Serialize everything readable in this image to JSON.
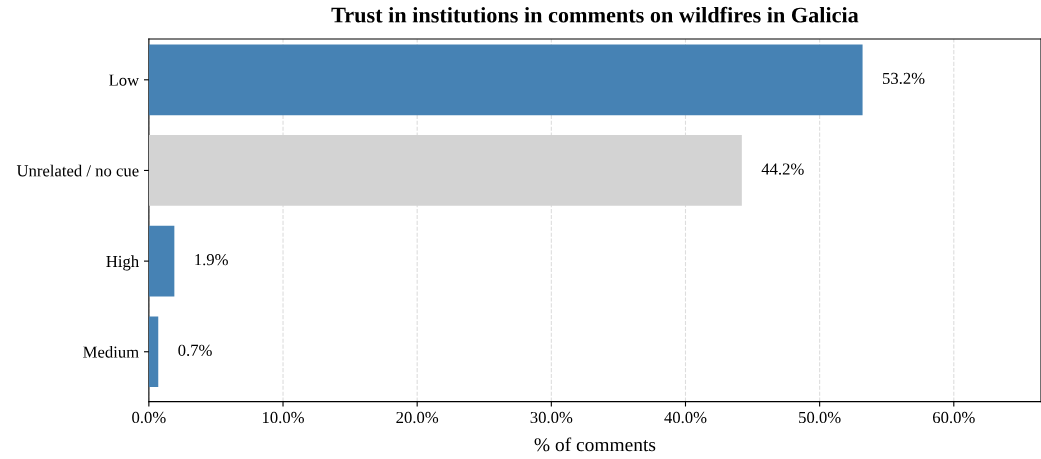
{
  "chart_data": {
    "type": "bar",
    "orientation": "horizontal",
    "title": "Trust in institutions in comments on wildfires in Galicia",
    "xlabel": "% of comments",
    "categories": [
      "Low",
      "Unrelated / no cue",
      "High",
      "Medium"
    ],
    "values": [
      53.2,
      44.2,
      1.9,
      0.7
    ],
    "colors": [
      "#4682b4",
      "#d3d3d3",
      "#4682b4",
      "#4682b4"
    ],
    "value_labels": [
      "53.2%",
      "44.2%",
      "1.9%",
      "0.7%"
    ],
    "xlim": [
      0,
      66.5
    ],
    "xticks": [
      {
        "value": 0,
        "label": "0.0%"
      },
      {
        "value": 10,
        "label": "10.0%"
      },
      {
        "value": 20,
        "label": "20.0%"
      },
      {
        "value": 30,
        "label": "30.0%"
      },
      {
        "value": 40,
        "label": "40.0%"
      },
      {
        "value": 50,
        "label": "50.0%"
      },
      {
        "value": 60,
        "label": "60.0%"
      }
    ],
    "grid": "x",
    "legend": false
  }
}
